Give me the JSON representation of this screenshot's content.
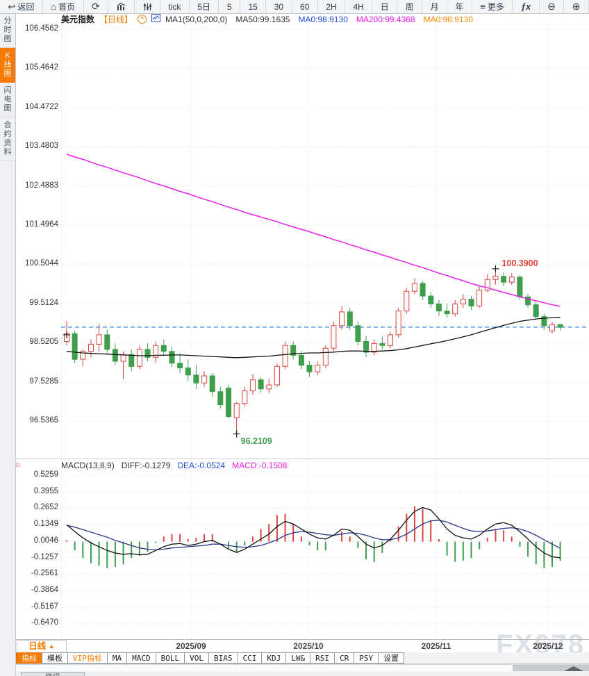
{
  "toolbar": {
    "items": [
      {
        "icon": "back-icon",
        "label": "返回"
      },
      {
        "icon": "home-icon",
        "label": "首页"
      },
      {
        "icon": "refresh-icon",
        "label": ""
      },
      {
        "icon": "kline-chart-icon",
        "label": ""
      },
      {
        "icon": "indicator-sliders-icon",
        "label": ""
      },
      {
        "icon": "",
        "label": "tick"
      },
      {
        "icon": "",
        "label": "5日"
      },
      {
        "icon": "",
        "label": "5"
      },
      {
        "icon": "",
        "label": "15"
      },
      {
        "icon": "",
        "label": "30"
      },
      {
        "icon": "",
        "label": "60"
      },
      {
        "icon": "",
        "label": "2H"
      },
      {
        "icon": "",
        "label": "4H"
      },
      {
        "icon": "",
        "label": "日"
      },
      {
        "icon": "",
        "label": "周"
      },
      {
        "icon": "",
        "label": "月"
      },
      {
        "icon": "",
        "label": "年"
      },
      {
        "icon": "menu-icon",
        "label": "更多"
      },
      {
        "icon": "fx-icon",
        "label": ""
      },
      {
        "icon": "zoom-out-icon",
        "label": ""
      },
      {
        "icon": "zoom-in-icon",
        "label": ""
      }
    ]
  },
  "sidebar": {
    "items": [
      {
        "label": "分时图",
        "active": false
      },
      {
        "label": "K线图",
        "active": true
      },
      {
        "label": "闪电图",
        "active": false
      },
      {
        "label": "合约资料",
        "active": false
      }
    ]
  },
  "chart_header": {
    "symbol": "美元指数",
    "period": "【日线】",
    "ma_items": [
      {
        "text": "MA1(50,0,200,0)",
        "color": "#333333"
      },
      {
        "text": "MA50:99.1635",
        "color": "#333333"
      },
      {
        "text": "MA0:98.9130",
        "color": "#2450d8"
      },
      {
        "text": "MA200:99.4368",
        "color": "#e81fe8"
      },
      {
        "text": "MA0:98.9130",
        "color": "#ff8a00"
      }
    ]
  },
  "macd_header": {
    "items": [
      {
        "text": "MACD(13,8,9)",
        "color": "#333333"
      },
      {
        "text": "DIFF:-0.1279",
        "color": "#333333"
      },
      {
        "text": "DEA:-0.0524",
        "color": "#2450d8"
      },
      {
        "text": "MACD:-0.1508",
        "color": "#ea1fd8"
      }
    ]
  },
  "chart_data": {
    "type": "candlestick",
    "symbol": "美元指数",
    "period": "日线",
    "y_axis_labels": [
      "106.4562",
      "105.4642",
      "104.4722",
      "103.4803",
      "102.4883",
      "101.4964",
      "100.5044",
      "99.5124",
      "98.5205",
      "97.5285",
      "96.5365"
    ],
    "macd_y_axis_labels": [
      "0.5259",
      "0.3955",
      "0.2652",
      "0.1349",
      "0.0046",
      "-0.1257",
      "-0.2561",
      "-0.3864",
      "-0.5167",
      "-0.6470"
    ],
    "x_dates": [
      "2025/09",
      "2025/10",
      "2025/11",
      "2025/12"
    ],
    "candles_ohlc": [
      [
        98.55,
        99.07,
        98.45,
        98.75
      ],
      [
        98.75,
        98.82,
        98.0,
        98.1
      ],
      [
        98.1,
        98.35,
        97.92,
        98.3
      ],
      [
        98.3,
        98.6,
        98.15,
        98.48
      ],
      [
        98.48,
        99.0,
        98.3,
        98.72
      ],
      [
        98.72,
        98.85,
        98.25,
        98.35
      ],
      [
        98.35,
        98.5,
        97.95,
        98.05
      ],
      [
        98.05,
        98.3,
        97.6,
        98.22
      ],
      [
        98.22,
        98.35,
        97.8,
        97.92
      ],
      [
        97.92,
        98.45,
        97.85,
        98.35
      ],
      [
        98.35,
        98.5,
        98.05,
        98.15
      ],
      [
        98.15,
        98.55,
        98.0,
        98.45
      ],
      [
        98.45,
        98.6,
        98.2,
        98.3
      ],
      [
        98.3,
        98.42,
        97.9,
        98.0
      ],
      [
        98.0,
        98.25,
        97.75,
        97.88
      ],
      [
        97.88,
        98.1,
        97.55,
        97.7
      ],
      [
        97.7,
        97.95,
        97.35,
        97.5
      ],
      [
        97.5,
        97.8,
        97.4,
        97.68
      ],
      [
        97.68,
        97.75,
        97.15,
        97.28
      ],
      [
        97.28,
        97.4,
        96.85,
        96.95
      ],
      [
        97.37,
        97.45,
        96.6,
        96.65
      ],
      [
        96.62,
        97.02,
        96.21,
        96.98
      ],
      [
        96.98,
        97.4,
        96.9,
        97.3
      ],
      [
        97.3,
        97.72,
        97.2,
        97.58
      ],
      [
        97.58,
        97.65,
        97.25,
        97.35
      ],
      [
        97.35,
        97.6,
        97.25,
        97.45
      ],
      [
        97.45,
        98.0,
        97.4,
        97.92
      ],
      [
        97.92,
        98.55,
        97.85,
        98.45
      ],
      [
        98.45,
        98.55,
        98.1,
        98.2
      ],
      [
        98.2,
        98.3,
        97.85,
        97.95
      ],
      [
        97.95,
        98.05,
        97.65,
        97.78
      ],
      [
        97.78,
        98.05,
        97.7,
        97.95
      ],
      [
        97.95,
        98.45,
        97.88,
        98.38
      ],
      [
        98.38,
        99.05,
        98.3,
        98.95
      ],
      [
        98.95,
        99.45,
        98.85,
        99.3
      ],
      [
        99.3,
        99.4,
        98.85,
        98.95
      ],
      [
        98.95,
        99.05,
        98.45,
        98.55
      ],
      [
        98.55,
        98.7,
        98.15,
        98.28
      ],
      [
        98.28,
        98.6,
        98.2,
        98.5
      ],
      [
        98.5,
        98.68,
        98.35,
        98.45
      ],
      [
        98.45,
        98.8,
        98.38,
        98.72
      ],
      [
        98.72,
        99.4,
        98.65,
        99.32
      ],
      [
        99.32,
        99.9,
        99.25,
        99.82
      ],
      [
        99.82,
        100.15,
        99.75,
        100.02
      ],
      [
        100.02,
        100.08,
        99.6,
        99.7
      ],
      [
        99.7,
        99.8,
        99.4,
        99.5
      ],
      [
        99.5,
        99.6,
        99.2,
        99.32
      ],
      [
        99.32,
        99.5,
        99.15,
        99.25
      ],
      [
        99.25,
        99.6,
        99.18,
        99.5
      ],
      [
        99.5,
        99.75,
        99.4,
        99.62
      ],
      [
        99.62,
        99.7,
        99.35,
        99.45
      ],
      [
        99.45,
        99.95,
        99.4,
        99.85
      ],
      [
        99.85,
        100.25,
        99.8,
        100.12
      ],
      [
        100.12,
        100.39,
        100.0,
        100.2
      ],
      [
        100.2,
        100.3,
        99.95,
        100.05
      ],
      [
        100.05,
        100.28,
        99.98,
        100.18
      ],
      [
        100.18,
        100.22,
        99.6,
        99.68
      ],
      [
        99.68,
        99.75,
        99.4,
        99.48
      ],
      [
        99.48,
        99.55,
        99.1,
        99.18
      ],
      [
        99.18,
        99.25,
        98.85,
        98.95
      ],
      [
        98.82,
        99.05,
        98.75,
        98.98
      ],
      [
        98.98,
        99.0,
        98.82,
        98.91
      ]
    ],
    "ma50": [
      98.3,
      98.28,
      98.26,
      98.25,
      98.24,
      98.23,
      98.22,
      98.21,
      98.2,
      98.19,
      98.19,
      98.2,
      98.2,
      98.21,
      98.21,
      98.2,
      98.19,
      98.18,
      98.17,
      98.16,
      98.15,
      98.14,
      98.15,
      98.16,
      98.17,
      98.18,
      98.2,
      98.22,
      98.24,
      98.25,
      98.26,
      98.26,
      98.27,
      98.28,
      98.3,
      98.31,
      98.31,
      98.3,
      98.3,
      98.31,
      98.32,
      98.34,
      98.37,
      98.41,
      98.45,
      98.49,
      98.53,
      98.57,
      98.62,
      98.67,
      98.72,
      98.78,
      98.84,
      98.9,
      98.96,
      99.01,
      99.06,
      99.09,
      99.12,
      99.14,
      99.15,
      99.16
    ],
    "ma200": [
      103.29,
      103.22,
      103.16,
      103.09,
      103.02,
      102.96,
      102.89,
      102.82,
      102.76,
      102.69,
      102.62,
      102.55,
      102.49,
      102.42,
      102.35,
      102.29,
      102.22,
      102.15,
      102.09,
      102.02,
      101.95,
      101.89,
      101.82,
      101.76,
      101.7,
      101.64,
      101.58,
      101.51,
      101.45,
      101.39,
      101.33,
      101.26,
      101.2,
      101.13,
      101.07,
      101.0,
      100.94,
      100.87,
      100.81,
      100.74,
      100.68,
      100.61,
      100.55,
      100.48,
      100.42,
      100.35,
      100.28,
      100.22,
      100.15,
      100.09,
      100.02,
      99.96,
      99.91,
      99.85,
      99.79,
      99.74,
      99.68,
      99.63,
      99.58,
      99.53,
      99.48,
      99.44
    ],
    "macd": {
      "params": "13,8,9",
      "diff": [
        0.135,
        0.08,
        0.03,
        -0.01,
        -0.04,
        -0.07,
        -0.09,
        -0.1,
        -0.095,
        -0.105,
        -0.1,
        -0.07,
        -0.04,
        -0.02,
        -0.015,
        -0.03,
        -0.02,
        0.0,
        0.01,
        -0.02,
        -0.06,
        -0.085,
        -0.06,
        -0.02,
        0.02,
        0.06,
        0.12,
        0.16,
        0.14,
        0.1,
        0.06,
        0.03,
        0.02,
        0.05,
        0.1,
        0.09,
        0.04,
        -0.02,
        -0.05,
        -0.03,
        0.02,
        0.09,
        0.17,
        0.24,
        0.27,
        0.25,
        0.18,
        0.1,
        0.05,
        0.03,
        0.02,
        0.05,
        0.1,
        0.14,
        0.15,
        0.13,
        0.08,
        0.02,
        -0.04,
        -0.09,
        -0.12,
        -0.1279
      ],
      "dea": [
        0.13,
        0.115,
        0.095,
        0.075,
        0.055,
        0.035,
        0.01,
        -0.01,
        -0.03,
        -0.05,
        -0.06,
        -0.065,
        -0.06,
        -0.05,
        -0.045,
        -0.04,
        -0.035,
        -0.03,
        -0.02,
        -0.02,
        -0.03,
        -0.04,
        -0.045,
        -0.04,
        -0.03,
        -0.01,
        0.015,
        0.05,
        0.07,
        0.08,
        0.075,
        0.065,
        0.055,
        0.05,
        0.06,
        0.07,
        0.065,
        0.05,
        0.03,
        0.015,
        0.015,
        0.03,
        0.06,
        0.1,
        0.14,
        0.165,
        0.17,
        0.155,
        0.13,
        0.105,
        0.085,
        0.08,
        0.085,
        0.095,
        0.105,
        0.11,
        0.1,
        0.08,
        0.05,
        0.015,
        -0.02,
        -0.0524
      ],
      "last_diff": -0.1279,
      "last_dea": -0.0524,
      "last_macd": -0.1508
    },
    "close_line": 98.913,
    "high_annotation": {
      "text": "100.3900",
      "index": 53,
      "price": 100.39,
      "color": "#d9453c"
    },
    "low_annotation": {
      "text": "96.2109",
      "index": 21,
      "price": 96.21,
      "color": "#3f9e4d"
    },
    "first_marker": {
      "index": 0,
      "price": 98.72
    },
    "colors": {
      "up": "#d9453c",
      "down": "#3f9e4d",
      "ma50": "#111111",
      "ma200": "#e81fe8",
      "dea": "#27348b",
      "diff": "#111111",
      "close_dash": "#2f80e0",
      "grid": "#dcdcdc"
    }
  },
  "bottom": {
    "period_button": "日线",
    "tabs": [
      {
        "label": "指标",
        "state": "active"
      },
      {
        "label": "模板",
        "state": "normal"
      },
      {
        "label": "VIP指标",
        "state": "vip"
      },
      {
        "label": "MA",
        "state": "normal"
      },
      {
        "label": "MACD",
        "state": "normal"
      },
      {
        "label": "BOLL",
        "state": "normal"
      },
      {
        "label": "VOL",
        "state": "normal"
      },
      {
        "label": "BIAS",
        "state": "normal"
      },
      {
        "label": "CCI",
        "state": "normal"
      },
      {
        "label": "KDJ",
        "state": "normal"
      },
      {
        "label": "LW&",
        "state": "normal"
      },
      {
        "label": "RSI",
        "state": "normal"
      },
      {
        "label": "CR",
        "state": "normal"
      },
      {
        "label": "PSY",
        "state": "normal"
      },
      {
        "label": "设置",
        "state": "normal"
      }
    ],
    "partial_tab": "资讯"
  },
  "watermark": "FX678"
}
